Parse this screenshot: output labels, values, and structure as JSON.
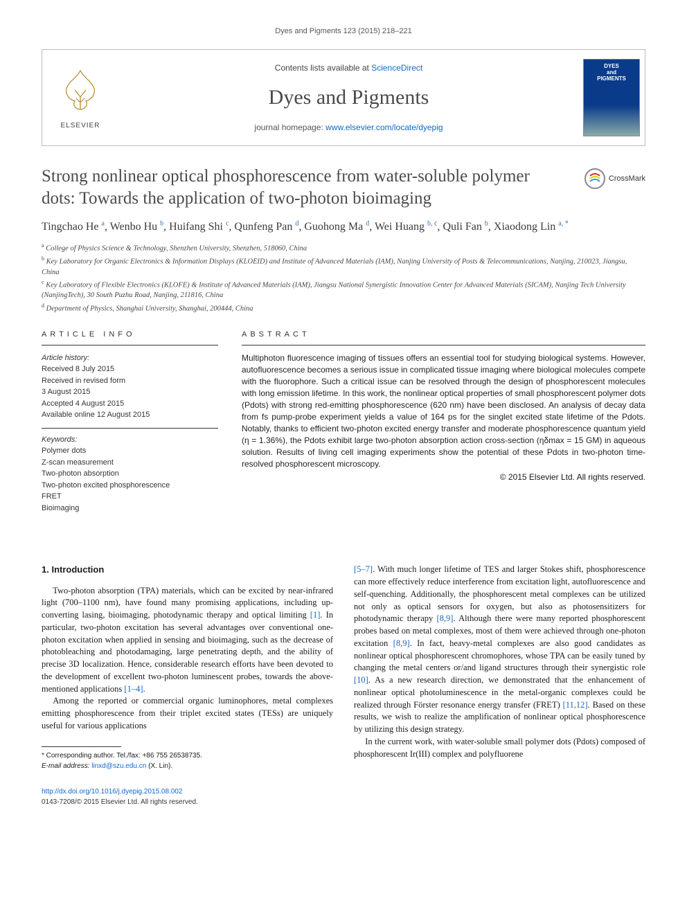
{
  "running_head": "Dyes and Pigments 123 (2015) 218–221",
  "masthead": {
    "contents_prefix": "Contents lists available at ",
    "contents_link": "ScienceDirect",
    "journal": "Dyes and Pigments",
    "homepage_prefix": "journal homepage: ",
    "homepage_link": "www.elsevier.com/locate/dyepig",
    "publisher_word": "ELSEVIER",
    "cover_text": "DYES\nand\nPIGMENTS"
  },
  "crossmark_label": "CrossMark",
  "title": "Strong nonlinear optical phosphorescence from water-soluble polymer dots: Towards the application of two-photon bioimaging",
  "authors_html": "Tingchao He <sup>a</sup>, Wenbo Hu <sup>b</sup>, Huifang Shi <sup>c</sup>, Qunfeng Pan <sup>d</sup>, Guohong Ma <sup>d</sup>, Wei Huang <sup>b, c</sup>, Quli Fan <sup>b</sup>, Xiaodong Lin <sup>a, <span class=\"ast\">*</span></sup>",
  "affiliations": [
    "a College of Physics Science & Technology, Shenzhen University, Shenzhen, 518060, China",
    "b Key Laboratory for Organic Electronics & Information Displays (KLOEID) and Institute of Advanced Materials (IAM), Nanjing University of Posts & Telecommunications, Nanjing, 210023, Jiangsu, China",
    "c Key Laboratory of Flexible Electronics (KLOFE) & Institute of Advanced Materials (IAM), Jiangsu National Synergistic Innovation Center for Advanced Materials (SICAM), Nanjing Tech University (NanjingTech), 30 South Puzhu Road, Nanjing, 211816, China",
    "d Department of Physics, Shanghai University, Shanghai, 200444, China"
  ],
  "article_info": {
    "heading": "ARTICLE INFO",
    "history_label": "Article history:",
    "history": [
      "Received 8 July 2015",
      "Received in revised form",
      "3 August 2015",
      "Accepted 4 August 2015",
      "Available online 12 August 2015"
    ],
    "keywords_label": "Keywords:",
    "keywords": [
      "Polymer dots",
      "Z-scan measurement",
      "Two-photon absorption",
      "Two-photon excited phosphorescence",
      "FRET",
      "Bioimaging"
    ]
  },
  "abstract": {
    "heading": "ABSTRACT",
    "text": "Multiphoton fluorescence imaging of tissues offers an essential tool for studying biological systems. However, autofluorescence becomes a serious issue in complicated tissue imaging where biological molecules compete with the fluorophore. Such a critical issue can be resolved through the design of phosphorescent molecules with long emission lifetime. In this work, the nonlinear optical properties of small phosphorescent polymer dots (Pdots) with strong red-emitting phosphorescence (620 nm) have been disclosed. An analysis of decay data from fs pump-probe experiment yields a value of 164 ps for the singlet excited state lifetime of the Pdots. Notably, thanks to efficient two-photon excited energy transfer and moderate phosphorescence quantum yield (η = 1.36%), the Pdots exhibit large two-photon absorption action cross-section (ηδmax = 15 GM) in aqueous solution. Results of living cell imaging experiments show the potential of these Pdots in two-photon time-resolved phosphorescent microscopy.",
    "copyright": "© 2015 Elsevier Ltd. All rights reserved."
  },
  "section1": {
    "heading": "1. Introduction",
    "p1": "Two-photon absorption (TPA) materials, which can be excited by near-infrared light (700–1100 nm), have found many promising applications, including up-converting lasing, bioimaging, photodynamic therapy and optical limiting [1]. In particular, two-photon excitation has several advantages over conventional one-photon excitation when applied in sensing and bioimaging, such as the decrease of photobleaching and photodamaging, large penetrating depth, and the ability of precise 3D localization. Hence, considerable research efforts have been devoted to the development of excellent two-photon luminescent probes, towards the above-mentioned applications [1–4].",
    "p2": "Among the reported or commercial organic luminophores, metal complexes emitting phosphorescence from their triplet excited states (TESs) are uniquely useful for various applications",
    "p3": "[5–7]. With much longer lifetime of TES and larger Stokes shift, phosphorescence can more effectively reduce interference from excitation light, autofluorescence and self-quenching. Additionally, the phosphorescent metal complexes can be utilized not only as optical sensors for oxygen, but also as photosensitizers for photodynamic therapy [8,9]. Although there were many reported phosphorescent probes based on metal complexes, most of them were achieved through one-photon excitation [8,9]. In fact, heavy-metal complexes are also good candidates as nonlinear optical phosphorescent chromophores, whose TPA can be easily tuned by changing the metal centers or/and ligand structures through their synergistic role [10]. As a new research direction, we demonstrated that the enhancement of nonlinear optical photoluminescence in the metal-organic complexes could be realized through Förster resonance energy transfer (FRET) [11,12]. Based on these results, we wish to realize the amplification of nonlinear optical phosphorescence by utilizing this design strategy.",
    "p4": "In the current work, with water-soluble small polymer dots (Pdots) composed of phosphorescent Ir(III) complex and polyfluorene"
  },
  "corresponding": {
    "line1": "* Corresponding author. Tel./fax: +86 755 26538735.",
    "line2_prefix": "E-mail address: ",
    "email": "linxd@szu.edu.cn",
    "line2_suffix": " (X. Lin)."
  },
  "footer": {
    "doi_link": "http://dx.doi.org/10.1016/j.dyepig.2015.08.002",
    "rights": "0143-7208/© 2015 Elsevier Ltd. All rights reserved."
  },
  "colors": {
    "link": "#1168c9",
    "heading_gray": "#4b4b4b",
    "text": "#1a1a1a",
    "rule": "#333333"
  }
}
